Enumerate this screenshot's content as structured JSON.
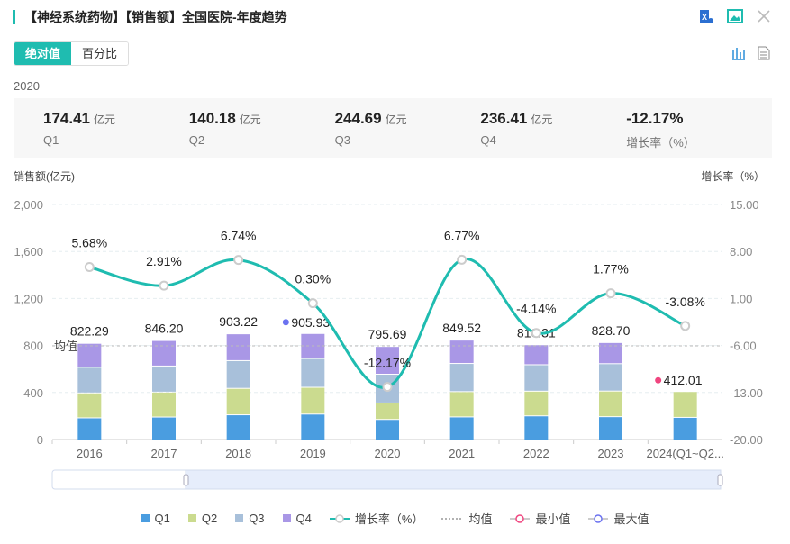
{
  "header": {
    "title": "【神经系统药物】【销售额】全国医院-年度趋势"
  },
  "toolbar": {
    "excel": "excel-export-icon",
    "image": "image-export-icon",
    "close": "close-icon"
  },
  "tabs": [
    {
      "label": "绝对值",
      "active": true
    },
    {
      "label": "百分比",
      "active": false
    }
  ],
  "selected": {
    "year": "2020",
    "stats": [
      {
        "value": "174.41",
        "unit": "亿元",
        "label": "Q1"
      },
      {
        "value": "140.18",
        "unit": "亿元",
        "label": "Q2"
      },
      {
        "value": "244.69",
        "unit": "亿元",
        "label": "Q3"
      },
      {
        "value": "236.41",
        "unit": "亿元",
        "label": "Q4"
      },
      {
        "value": "-12.17%",
        "unit": "",
        "label": "增长率（%）"
      }
    ]
  },
  "colors": {
    "accent": "#1fbcb0",
    "Q1": "#4a9de0",
    "Q2": "#cbdb8f",
    "Q3": "#a8c0da",
    "Q4": "#a997e6",
    "line": "#1fbcb0",
    "min": "#f0457f",
    "max": "#6b72f0"
  },
  "chart_data": {
    "type": "bar+line",
    "ylabel": "销售额(亿元)",
    "y2label": "增长率（%）",
    "ylim": [
      0,
      2000
    ],
    "yticks": [
      "0",
      "400",
      "800",
      "1,200",
      "1,600",
      "2,000"
    ],
    "y2lim": [
      -20,
      15
    ],
    "y2ticks": [
      "-20.00",
      "-13.00",
      "-6.00",
      "1.00",
      "8.00",
      "15.00"
    ],
    "categories": [
      "2016",
      "2017",
      "2018",
      "2019",
      "2020",
      "2021",
      "2022",
      "2023",
      "2024(Q1~Q2..."
    ],
    "series": [
      {
        "name": "Q1",
        "values": [
          188,
          195,
          214,
          220,
          174.41,
          196,
          205,
          198,
          192
        ]
      },
      {
        "name": "Q2",
        "values": [
          212,
          212,
          225,
          228,
          140.18,
          215,
          210,
          218,
          220.01
        ]
      },
      {
        "name": "Q3",
        "values": [
          218,
          222,
          236,
          245,
          244.69,
          240,
          225,
          233,
          null
        ]
      },
      {
        "name": "Q4",
        "values": [
          204.29,
          217.2,
          228.22,
          212.93,
          236.41,
          198.52,
          170.31,
          179.7,
          null
        ]
      }
    ],
    "totals": [
      "822.29",
      "846.20",
      "903.22",
      "905.93",
      "795.69",
      "849.52",
      "810.31",
      "828.70",
      "412.01"
    ],
    "growth": {
      "name": "增长率（%）",
      "values": [
        5.68,
        2.91,
        6.74,
        0.3,
        -12.17,
        6.77,
        -4.14,
        1.77,
        -3.08
      ],
      "labels": [
        "5.68%",
        "2.91%",
        "6.74%",
        "0.30%",
        "-12.17%",
        "6.77%",
        "-4.14%",
        "1.77%",
        "-3.08%"
      ]
    },
    "mean": {
      "label": "均值",
      "value": 797.1
    },
    "max_index": 3,
    "min_index": 8,
    "legend": [
      "Q1",
      "Q2",
      "Q3",
      "Q4",
      "增长率（%）",
      "均值",
      "最小值",
      "最大值"
    ],
    "legend_position": "bottom"
  }
}
